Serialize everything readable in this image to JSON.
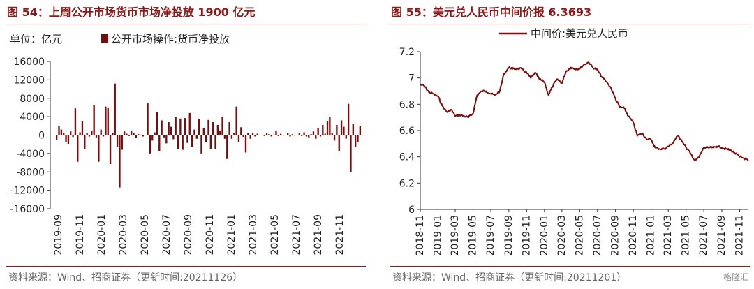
{
  "left": {
    "title": "图 54：上周公开市场货币市场净投放 1900 亿元",
    "unit_label": "单位：亿元",
    "source": "资料来源：Wind、招商证券（更新时间:20211126）",
    "chart_data": {
      "type": "bar",
      "series": [
        {
          "name": "公开市场操作:货币净投放"
        }
      ],
      "ylim": [
        -16000,
        16000
      ],
      "yticks": [
        16000,
        12000,
        8000,
        4000,
        0,
        -4000,
        -8000,
        -12000,
        -16000
      ],
      "xticks": [
        "2019-09",
        "2019-11",
        "2020-01",
        "2020-03",
        "2020-05",
        "2020-07",
        "2020-09",
        "2020-11",
        "2021-01",
        "2021-03",
        "2021-05",
        "2021-07",
        "2021-09",
        "2021-11"
      ],
      "color": "#7B0C0C",
      "values": [
        -1000,
        2000,
        1200,
        500,
        -1500,
        -2000,
        800,
        -400,
        5800,
        -5800,
        600,
        3000,
        -3000,
        500,
        -300,
        1000,
        6500,
        -500,
        -5800,
        1200,
        -300,
        6200,
        6000,
        -6300,
        500,
        11200,
        -2500,
        -11400,
        -3200,
        800,
        300,
        -200,
        1000,
        400,
        -600,
        200,
        100,
        -300,
        0,
        6900,
        -4000,
        -1200,
        600,
        5000,
        -3500,
        3200,
        -500,
        -1800,
        2800,
        1800,
        -900,
        4000,
        -3000,
        3600,
        -3200,
        3700,
        -1700,
        4800,
        -2500,
        1200,
        -800,
        3500,
        -4000,
        1600,
        -1500,
        3300,
        -3000,
        2800,
        -3000,
        2200,
        1000,
        4000,
        -800,
        -5200,
        2800,
        -800,
        400,
        6200,
        -1500,
        1700,
        -400,
        -3800,
        500,
        -800,
        400,
        -300,
        300,
        0,
        0,
        -200,
        500,
        200,
        -300,
        100,
        1000,
        -200,
        300,
        -100,
        0,
        400,
        -300,
        200,
        -100,
        0,
        400,
        -200,
        600,
        -300,
        -500,
        200,
        800,
        -800,
        1500,
        -300,
        2200,
        300,
        3000,
        4000,
        500,
        -1200,
        2200,
        -3500,
        3200,
        1800,
        -800,
        6800,
        -8000,
        2500,
        -2500,
        -1500,
        1900
      ]
    }
  },
  "right": {
    "title": "图 55：美元兑人民币中间价报 6.3693",
    "source": "资料来源：Wind、招商证券（更新时间:20211201）",
    "watermark": "格隆汇",
    "chart_data": {
      "type": "line",
      "series": [
        {
          "name": "中间价:美元兑人民币"
        }
      ],
      "ylim": [
        6,
        7.2
      ],
      "yticks": [
        "7.2",
        "7",
        "6.8",
        "6.6",
        "6.4",
        "6.2",
        "6"
      ],
      "xticks": [
        "2018-11",
        "2019-01",
        "2019-03",
        "2019-05",
        "2019-07",
        "2019-09",
        "2019-11",
        "2020-01",
        "2020-03",
        "2020-05",
        "2020-07",
        "2020-09",
        "2020-11",
        "2021-01",
        "2021-03",
        "2021-05",
        "2021-07",
        "2021-09",
        "2021-11"
      ],
      "x_start": "2018-11",
      "x_end": "2021-12",
      "color": "#7B0C0C",
      "points": [
        [
          "2018-11-01",
          6.95
        ],
        [
          "2018-11-15",
          6.94
        ],
        [
          "2018-12-01",
          6.89
        ],
        [
          "2018-12-15",
          6.88
        ],
        [
          "2019-01-01",
          6.86
        ],
        [
          "2019-01-15",
          6.79
        ],
        [
          "2019-02-01",
          6.74
        ],
        [
          "2019-02-15",
          6.76
        ],
        [
          "2019-03-01",
          6.71
        ],
        [
          "2019-03-15",
          6.72
        ],
        [
          "2019-04-01",
          6.71
        ],
        [
          "2019-04-15",
          6.7
        ],
        [
          "2019-05-01",
          6.73
        ],
        [
          "2019-05-15",
          6.87
        ],
        [
          "2019-06-01",
          6.9
        ],
        [
          "2019-06-15",
          6.9
        ],
        [
          "2019-07-01",
          6.88
        ],
        [
          "2019-07-15",
          6.87
        ],
        [
          "2019-08-01",
          6.9
        ],
        [
          "2019-08-15",
          7.03
        ],
        [
          "2019-09-01",
          7.08
        ],
        [
          "2019-09-15",
          7.07
        ],
        [
          "2019-10-01",
          7.07
        ],
        [
          "2019-10-15",
          7.07
        ],
        [
          "2019-11-01",
          7.04
        ],
        [
          "2019-11-15",
          7.0
        ],
        [
          "2019-12-01",
          7.04
        ],
        [
          "2019-12-15",
          6.99
        ],
        [
          "2020-01-01",
          6.97
        ],
        [
          "2020-01-15",
          6.87
        ],
        [
          "2020-02-01",
          6.95
        ],
        [
          "2020-02-15",
          6.99
        ],
        [
          "2020-03-01",
          6.96
        ],
        [
          "2020-03-15",
          7.05
        ],
        [
          "2020-04-01",
          7.08
        ],
        [
          "2020-04-15",
          7.07
        ],
        [
          "2020-05-01",
          7.07
        ],
        [
          "2020-05-15",
          7.1
        ],
        [
          "2020-06-01",
          7.12
        ],
        [
          "2020-06-15",
          7.08
        ],
        [
          "2020-07-01",
          7.06
        ],
        [
          "2020-07-15",
          7.01
        ],
        [
          "2020-08-01",
          6.97
        ],
        [
          "2020-08-15",
          6.93
        ],
        [
          "2020-09-01",
          6.84
        ],
        [
          "2020-09-15",
          6.78
        ],
        [
          "2020-10-01",
          6.77
        ],
        [
          "2020-10-15",
          6.71
        ],
        [
          "2020-11-01",
          6.66
        ],
        [
          "2020-11-15",
          6.56
        ],
        [
          "2020-12-01",
          6.58
        ],
        [
          "2020-12-15",
          6.54
        ],
        [
          "2021-01-01",
          6.53
        ],
        [
          "2021-01-15",
          6.47
        ],
        [
          "2021-02-01",
          6.46
        ],
        [
          "2021-02-15",
          6.46
        ],
        [
          "2021-03-01",
          6.48
        ],
        [
          "2021-03-15",
          6.5
        ],
        [
          "2021-04-01",
          6.56
        ],
        [
          "2021-04-15",
          6.53
        ],
        [
          "2021-05-01",
          6.47
        ],
        [
          "2021-05-15",
          6.43
        ],
        [
          "2021-06-01",
          6.37
        ],
        [
          "2021-06-15",
          6.4
        ],
        [
          "2021-07-01",
          6.47
        ],
        [
          "2021-07-15",
          6.47
        ],
        [
          "2021-08-01",
          6.47
        ],
        [
          "2021-08-15",
          6.48
        ],
        [
          "2021-09-01",
          6.47
        ],
        [
          "2021-09-15",
          6.46
        ],
        [
          "2021-10-01",
          6.45
        ],
        [
          "2021-10-15",
          6.43
        ],
        [
          "2021-11-01",
          6.4
        ],
        [
          "2021-11-15",
          6.39
        ],
        [
          "2021-11-30",
          6.37
        ]
      ]
    }
  }
}
